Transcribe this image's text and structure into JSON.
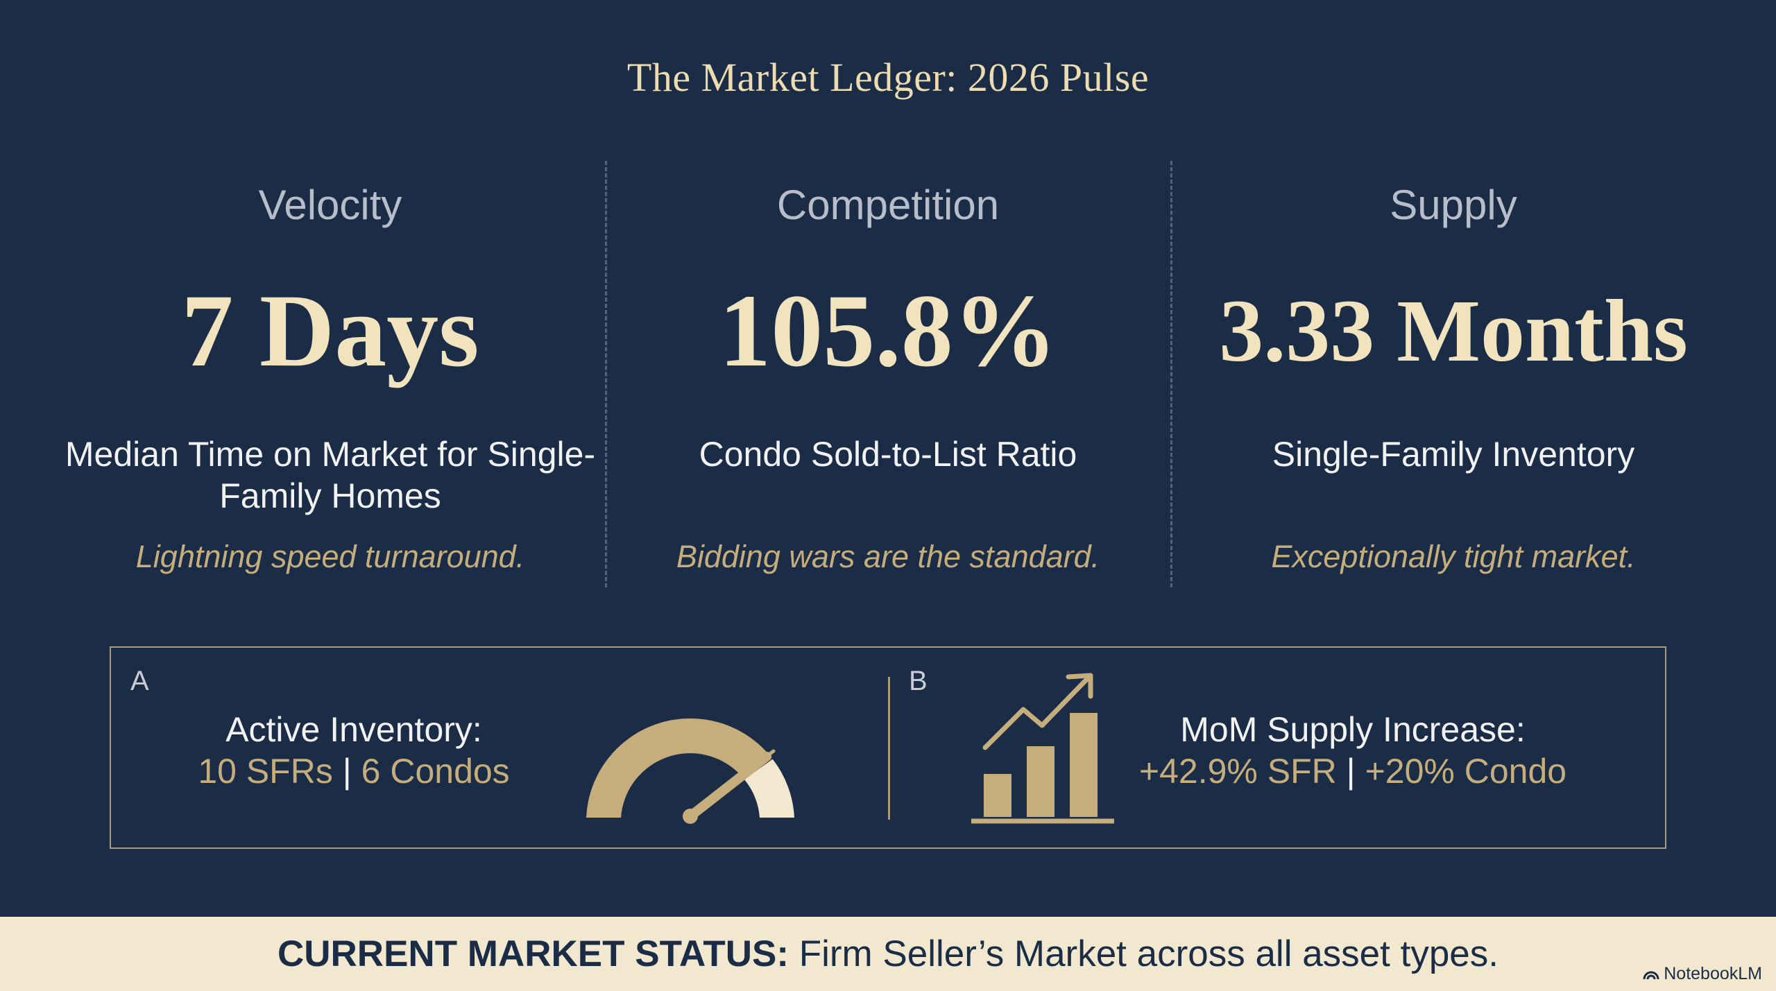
{
  "title": "The Market Ledger: 2026 Pulse",
  "columns": [
    {
      "label": "Velocity",
      "metric": "7 Days",
      "description": "Median Time on Market for Single-Family Homes",
      "note": "Lightning speed turnaround."
    },
    {
      "label": "Competition",
      "metric": "105.8%",
      "description": "Condo Sold-to-List Ratio",
      "note": "Bidding wars are the standard."
    },
    {
      "label": "Supply",
      "metric": "3.33 Months",
      "description": "Single-Family Inventory",
      "note": "Exceptionally tight market."
    }
  ],
  "panel": {
    "a": {
      "letter": "A",
      "heading": "Active Inventory:",
      "value_1": "10 SFRs",
      "separator": "|",
      "value_2": "6 Condos",
      "icon": "gauge-icon"
    },
    "b": {
      "letter": "B",
      "heading": "MoM Supply Increase:",
      "value_1": "+42.9% SFR",
      "separator": "|",
      "value_2": "+20% Condo",
      "icon": "bar-chart-growth-icon"
    }
  },
  "status": {
    "label": "CURRENT MARKET STATUS:",
    "text": "Firm Seller’s Market across all asset types."
  },
  "brand": "NotebookLM",
  "colors": {
    "background": "#1b2c46",
    "gold": "#c6ad7c",
    "cream": "#f1e3bd",
    "status_bar": "#f1e8cf"
  }
}
